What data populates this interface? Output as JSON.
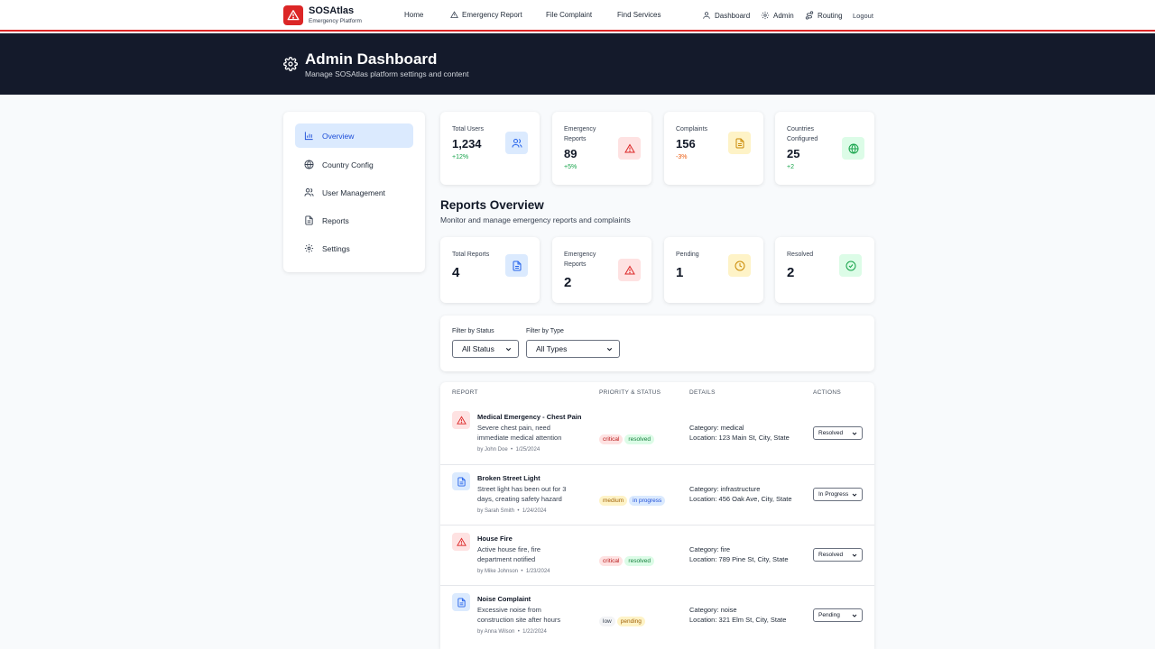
{
  "colors": {
    "brand": "#dc2626",
    "header_bg": "#141a2b",
    "active": "#1d4ed8"
  },
  "brand": {
    "name": "SOSAtlas",
    "subtitle": "Emergency Platform"
  },
  "nav": {
    "home": "Home",
    "emergency_report": "Emergency Report",
    "file_complaint": "File Complaint",
    "find_services": "Find Services",
    "dashboard": "Dashboard",
    "admin": "Admin",
    "routing": "Routing",
    "logout": "Logout"
  },
  "header": {
    "title": "Admin Dashboard",
    "subtitle": "Manage SOSAtlas platform settings and content"
  },
  "sidebar": {
    "items": [
      {
        "label": "Overview",
        "icon": "bar-chart-icon"
      },
      {
        "label": "Country Config",
        "icon": "globe-icon"
      },
      {
        "label": "User Management",
        "icon": "users-icon"
      },
      {
        "label": "Reports",
        "icon": "document-icon"
      },
      {
        "label": "Settings",
        "icon": "gear-icon"
      }
    ]
  },
  "stats": [
    {
      "label": "Total Users",
      "value": "1,234",
      "change": "+12%",
      "icon": "users-icon"
    },
    {
      "label": "Emergency Reports",
      "value": "89",
      "change": "+5%",
      "icon": "warning-icon"
    },
    {
      "label": "Complaints",
      "value": "156",
      "change": "-3%",
      "icon": "document-icon"
    },
    {
      "label": "Countries Configured",
      "value": "25",
      "change": "+2",
      "icon": "globe-icon"
    }
  ],
  "reports_overview": {
    "title": "Reports Overview",
    "subtitle": "Monitor and manage emergency reports and complaints",
    "stats": [
      {
        "label": "Total Reports",
        "value": "4",
        "icon": "document-icon"
      },
      {
        "label": "Emergency Reports",
        "value": "2",
        "icon": "warning-icon"
      },
      {
        "label": "Pending",
        "value": "1",
        "icon": "clock-icon"
      },
      {
        "label": "Resolved",
        "value": "2",
        "icon": "check-circle-icon"
      }
    ]
  },
  "filters": {
    "status_label": "Filter by Status",
    "status_value": "All Status",
    "type_label": "Filter by Type",
    "type_value": "All Types"
  },
  "table": {
    "headers": [
      "REPORT",
      "PRIORITY & STATUS",
      "DETAILS",
      "ACTIONS"
    ],
    "rows": [
      {
        "title": "Medical Emergency - Chest Pain",
        "desc": "Severe chest pain, need immediate medical attention",
        "author": "by John Doe",
        "date": "1/25/2024",
        "priority": "critical",
        "status": "resolved",
        "category": "Category: medical",
        "location": "Location: 123 Main St, City, State",
        "action": "Resolved",
        "kind": "emergency"
      },
      {
        "title": "Broken Street Light",
        "desc": "Street light has been out for 3 days, creating safety hazard",
        "author": "by Sarah Smith",
        "date": "1/24/2024",
        "priority": "medium",
        "status": "in progress",
        "category": "Category: infrastructure",
        "location": "Location: 456 Oak Ave, City, State",
        "action": "In Progress",
        "kind": "complaint"
      },
      {
        "title": "House Fire",
        "desc": "Active house fire, fire department notified",
        "author": "by Mike Johnson",
        "date": "1/23/2024",
        "priority": "critical",
        "status": "resolved",
        "category": "Category: fire",
        "location": "Location: 789 Pine St, City, State",
        "action": "Resolved",
        "kind": "emergency"
      },
      {
        "title": "Noise Complaint",
        "desc": "Excessive noise from construction site after hours",
        "author": "by Anna Wilson",
        "date": "1/22/2024",
        "priority": "low",
        "status": "pending",
        "category": "Category: noise",
        "location": "Location: 321 Elm St, City, State",
        "action": "Pending",
        "kind": "complaint"
      }
    ]
  }
}
